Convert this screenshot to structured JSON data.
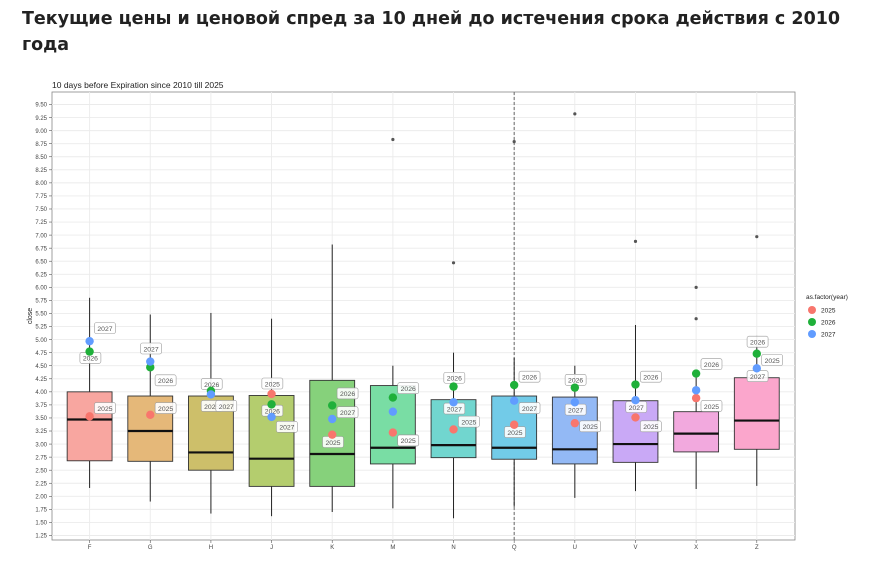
{
  "page": {
    "heading": "Текущие цены и ценовой спред за 10 дней до истечения срока действия с 2010 года"
  },
  "colors": {
    "panel_border": "#888888",
    "grid": "#ebebeb",
    "vline": "#666666",
    "legend_2025": "#f8766d",
    "legend_2026": "#1fb03a",
    "legend_2027": "#619cff"
  },
  "chart_data": {
    "type": "box",
    "title": "10 days before Expiration since 2010 till 2025",
    "xlabel": "",
    "ylabel": "close",
    "ylim": [
      1.25,
      9.5
    ],
    "y_ticks": [
      1.25,
      1.5,
      1.75,
      2.0,
      2.25,
      2.5,
      2.75,
      3.0,
      3.25,
      3.5,
      3.75,
      4.0,
      4.25,
      4.5,
      4.75,
      5.0,
      5.25,
      5.5,
      5.75,
      6.0,
      6.25,
      6.5,
      6.75,
      7.0,
      7.25,
      7.5,
      7.75,
      8.0,
      8.25,
      8.5,
      8.75,
      9.0,
      9.25,
      9.5
    ],
    "y_tick_labels": [
      "1.25",
      "1.50",
      "1.75",
      "2.00",
      "2.25",
      "2.50",
      "2.75",
      "3.00",
      "3.25",
      "3.50",
      "3.75",
      "4.00",
      "4.25",
      "4.50",
      "4.75",
      "5.00",
      "5.25",
      "5.50",
      "5.75",
      "6.00",
      "6.25",
      "6.50",
      "6.75",
      "7.00",
      "7.25",
      "7.50",
      "7.75",
      "8.00",
      "8.25",
      "8.50",
      "8.75",
      "9.00",
      "9.25",
      "9.50"
    ],
    "grid": true,
    "vertical_dashed_line_at": "Q",
    "categories": [
      "F",
      "G",
      "H",
      "J",
      "K",
      "M",
      "N",
      "Q",
      "U",
      "V",
      "X",
      "Z"
    ],
    "boxes": [
      {
        "cat": "F",
        "color": "#f8a6a0",
        "wlow": 2.16,
        "q1": 2.68,
        "median": 3.47,
        "q3": 4.0,
        "whigh": 5.8,
        "outliers": []
      },
      {
        "cat": "G",
        "color": "#e5b879",
        "wlow": 1.9,
        "q1": 2.67,
        "median": 3.25,
        "q3": 3.92,
        "whigh": 5.48,
        "outliers": []
      },
      {
        "cat": "H",
        "color": "#cdbf6a",
        "wlow": 1.67,
        "q1": 2.5,
        "median": 2.84,
        "q3": 3.92,
        "whigh": 5.51,
        "outliers": []
      },
      {
        "cat": "J",
        "color": "#b4cd6e",
        "wlow": 1.62,
        "q1": 2.19,
        "median": 2.72,
        "q3": 3.93,
        "whigh": 5.4,
        "outliers": []
      },
      {
        "cat": "K",
        "color": "#86d17b",
        "wlow": 1.7,
        "q1": 2.19,
        "median": 2.81,
        "q3": 4.22,
        "whigh": 6.82,
        "outliers": []
      },
      {
        "cat": "M",
        "color": "#79dda4",
        "wlow": 1.77,
        "q1": 2.62,
        "median": 2.93,
        "q3": 4.12,
        "whigh": 4.5,
        "outliers": [
          8.83
        ]
      },
      {
        "cat": "N",
        "color": "#71d6cf",
        "wlow": 1.58,
        "q1": 2.74,
        "median": 2.98,
        "q3": 3.85,
        "whigh": 4.75,
        "outliers": [
          6.47
        ]
      },
      {
        "cat": "Q",
        "color": "#72cbe8",
        "wlow": 1.8,
        "q1": 2.71,
        "median": 2.93,
        "q3": 3.92,
        "whigh": 4.65,
        "outliers": [
          8.79
        ]
      },
      {
        "cat": "U",
        "color": "#93b9f5",
        "wlow": 1.97,
        "q1": 2.62,
        "median": 2.9,
        "q3": 3.9,
        "whigh": 4.5,
        "outliers": [
          9.32
        ]
      },
      {
        "cat": "V",
        "color": "#c9a9f6",
        "wlow": 2.1,
        "q1": 2.65,
        "median": 3.0,
        "q3": 3.83,
        "whigh": 5.28,
        "outliers": [
          6.88
        ]
      },
      {
        "cat": "X",
        "color": "#f2a9de",
        "wlow": 2.14,
        "q1": 2.85,
        "median": 3.2,
        "q3": 3.62,
        "whigh": 4.3,
        "outliers": [
          6.0,
          5.4
        ]
      },
      {
        "cat": "Z",
        "color": "#fba6cc",
        "wlow": 2.2,
        "q1": 2.9,
        "median": 3.45,
        "q3": 4.27,
        "whigh": 5.07,
        "outliers": [
          6.97
        ]
      }
    ],
    "series": [
      {
        "name": "2025",
        "color": "#f8766d",
        "values": [
          3.53,
          3.56,
          null,
          3.96,
          3.18,
          3.22,
          3.28,
          3.37,
          3.4,
          3.51,
          3.88,
          null
        ]
      },
      {
        "name": "2026",
        "color": "#1fb03a",
        "values": [
          4.77,
          4.47,
          4.02,
          3.76,
          3.74,
          3.89,
          4.1,
          4.13,
          4.08,
          4.14,
          4.35,
          4.73
        ]
      },
      {
        "name": "2027",
        "color": "#619cff",
        "values": [
          4.97,
          4.58,
          3.95,
          3.52,
          3.48,
          3.62,
          3.8,
          3.83,
          3.8,
          3.84,
          4.03,
          4.45
        ]
      }
    ],
    "point_labels": [
      {
        "cat": "F",
        "text": "2027",
        "dx": 0.08,
        "y": 5.21
      },
      {
        "cat": "F",
        "text": "2026",
        "dx": -0.16,
        "y": 4.64
      },
      {
        "cat": "F",
        "text": "2025",
        "dx": 0.08,
        "y": 3.68
      },
      {
        "cat": "G",
        "text": "2027",
        "dx": -0.16,
        "y": 4.82
      },
      {
        "cat": "G",
        "text": "2026",
        "dx": 0.08,
        "y": 4.21
      },
      {
        "cat": "G",
        "text": "2025",
        "dx": 0.08,
        "y": 3.68
      },
      {
        "cat": "H",
        "text": "2026",
        "dx": -0.16,
        "y": 4.14
      },
      {
        "cat": "H",
        "text": "2025",
        "dx": -0.16,
        "y": 3.72
      },
      {
        "cat": "H",
        "text": "2027",
        "dx": 0.08,
        "y": 3.72
      },
      {
        "cat": "J",
        "text": "2025",
        "dx": -0.16,
        "y": 4.15
      },
      {
        "cat": "J",
        "text": "2026",
        "dx": -0.16,
        "y": 3.63
      },
      {
        "cat": "J",
        "text": "2027",
        "dx": 0.08,
        "y": 3.32
      },
      {
        "cat": "K",
        "text": "2026",
        "dx": 0.08,
        "y": 3.96
      },
      {
        "cat": "K",
        "text": "2027",
        "dx": 0.08,
        "y": 3.6
      },
      {
        "cat": "K",
        "text": "2025",
        "dx": -0.16,
        "y": 3.03
      },
      {
        "cat": "M",
        "text": "2026",
        "dx": 0.08,
        "y": 4.06
      },
      {
        "cat": "M",
        "text": "2027",
        "dx": 0.08,
        "y": 3.06
      },
      {
        "cat": "M",
        "text": "2025",
        "dx": 0.08,
        "y": 3.06
      },
      {
        "cat": "N",
        "text": "2026",
        "dx": -0.16,
        "y": 4.26
      },
      {
        "cat": "N",
        "text": "2027",
        "dx": -0.16,
        "y": 3.67
      },
      {
        "cat": "N",
        "text": "2025",
        "dx": 0.08,
        "y": 3.42
      },
      {
        "cat": "Q",
        "text": "2026",
        "dx": 0.08,
        "y": 4.28
      },
      {
        "cat": "Q",
        "text": "2027",
        "dx": 0.08,
        "y": 3.68
      },
      {
        "cat": "Q",
        "text": "2025",
        "dx": -0.16,
        "y": 3.22
      },
      {
        "cat": "U",
        "text": "2026",
        "dx": -0.16,
        "y": 4.22
      },
      {
        "cat": "U",
        "text": "2027",
        "dx": -0.16,
        "y": 3.65
      },
      {
        "cat": "U",
        "text": "2025",
        "dx": 0.08,
        "y": 3.33
      },
      {
        "cat": "V",
        "text": "2026",
        "dx": 0.08,
        "y": 4.28
      },
      {
        "cat": "V",
        "text": "2027",
        "dx": -0.16,
        "y": 3.7
      },
      {
        "cat": "V",
        "text": "2025",
        "dx": 0.08,
        "y": 3.33
      },
      {
        "cat": "X",
        "text": "2026",
        "dx": 0.08,
        "y": 4.52
      },
      {
        "cat": "X",
        "text": "2025",
        "dx": 0.08,
        "y": 3.72
      },
      {
        "cat": "Z",
        "text": "2026",
        "dx": -0.16,
        "y": 4.95
      },
      {
        "cat": "Z",
        "text": "2025",
        "dx": 0.08,
        "y": 4.6
      },
      {
        "cat": "Z",
        "text": "2027",
        "dx": -0.16,
        "y": 4.29
      }
    ],
    "legend": {
      "title": "as.factor(year)",
      "position": "right",
      "items": [
        "2025",
        "2026",
        "2027"
      ]
    }
  }
}
